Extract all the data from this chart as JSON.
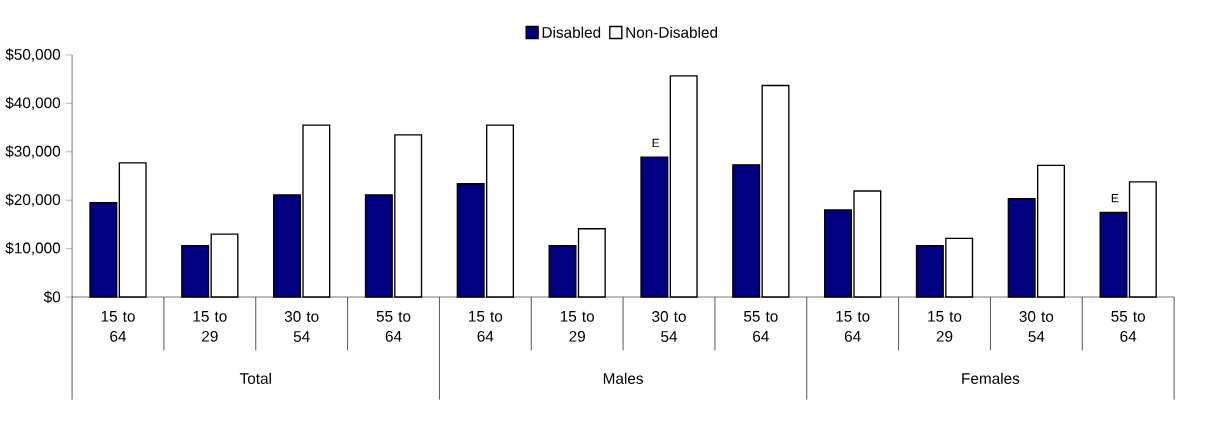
{
  "chart_data": {
    "type": "bar",
    "categories": [
      "15 to 64",
      "15 to 29",
      "30 to 54",
      "55 to 64",
      "15 to 64",
      "15 to 29",
      "30 to 54",
      "55 to 64",
      "15 to 64",
      "15 to 29",
      "30 to 54",
      "55 to 64"
    ],
    "series": [
      {
        "name": "Disabled",
        "color": "#000080",
        "values": [
          19500,
          10600,
          21100,
          21100,
          23400,
          10600,
          28900,
          27300,
          18000,
          10600,
          20300,
          17500
        ],
        "value_labels": [
          null,
          null,
          null,
          null,
          null,
          null,
          "E",
          null,
          null,
          null,
          null,
          "E"
        ]
      },
      {
        "name": "Non-Disabled",
        "color": "#ffffff",
        "values": [
          27700,
          13000,
          35500,
          33500,
          35500,
          14100,
          45700,
          43700,
          21900,
          12100,
          27200,
          23800
        ]
      }
    ],
    "annotations": [
      "Total",
      "Males",
      "Females"
    ],
    "ylim": [
      0,
      50000
    ],
    "yticks": [
      {
        "value": 0,
        "label": "$0"
      },
      {
        "value": 10000,
        "label": "$10,000"
      },
      {
        "value": 20000,
        "label": "$20,000"
      },
      {
        "value": 30000,
        "label": "$30,000"
      },
      {
        "value": 40000,
        "label": "$40,000"
      },
      {
        "value": 50000,
        "label": "$50,000"
      }
    ],
    "legend": "top"
  }
}
